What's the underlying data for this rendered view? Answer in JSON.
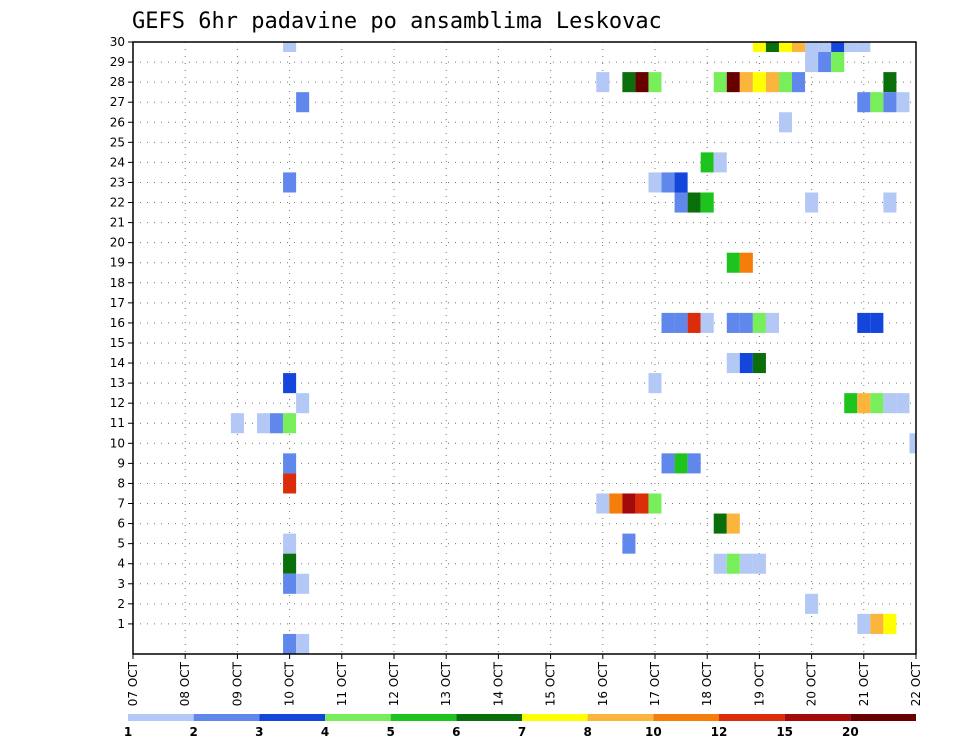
{
  "chart_data": {
    "type": "heatmap",
    "title": "GEFS 6hr padavine po ansamblima Leskovac",
    "xlabel": "",
    "ylabel": "",
    "y_ticks": [
      1,
      2,
      3,
      4,
      5,
      6,
      7,
      8,
      9,
      10,
      11,
      12,
      13,
      14,
      15,
      16,
      17,
      18,
      19,
      20,
      21,
      22,
      23,
      24,
      25,
      26,
      27,
      28,
      29,
      30
    ],
    "x_ticks": [
      "07 OCT",
      "08 OCT",
      "09 OCT",
      "10 OCT",
      "11 OCT",
      "12 OCT",
      "13 OCT",
      "14 OCT",
      "15 OCT",
      "16 OCT",
      "17 OCT",
      "18 OCT",
      "19 OCT",
      "20 OCT",
      "21 OCT",
      "22 OCT"
    ],
    "grid": true,
    "legend": {
      "position": "bottom",
      "labels": [
        "1",
        "2",
        "3",
        "4",
        "5",
        "6",
        "7",
        "8",
        "10",
        "12",
        "15",
        "20"
      ],
      "colors": [
        "#b4c8f5",
        "#5f87ec",
        "#1446dc",
        "#78ee5a",
        "#1ec31e",
        "#0a6e0a",
        "#ffff00",
        "#fbb43c",
        "#f57d0a",
        "#dc2d0a",
        "#a50a0a",
        "#690000"
      ]
    },
    "cells": [
      {
        "x": "10 OCT 00",
        "y": 30,
        "v": 1
      },
      {
        "x": "19 OCT 00",
        "y": 30,
        "v": 7
      },
      {
        "x": "19 OCT 06",
        "y": 30,
        "v": 6
      },
      {
        "x": "19 OCT 12",
        "y": 30,
        "v": 7
      },
      {
        "x": "19 OCT 18",
        "y": 30,
        "v": 8
      },
      {
        "x": "20 OCT 00",
        "y": 30,
        "v": 1
      },
      {
        "x": "20 OCT 06",
        "y": 30,
        "v": 1
      },
      {
        "x": "20 OCT 12",
        "y": 30,
        "v": 3
      },
      {
        "x": "20 OCT 18",
        "y": 30,
        "v": 1
      },
      {
        "x": "21 OCT 00",
        "y": 30,
        "v": 1
      },
      {
        "x": "20 OCT 00",
        "y": 29,
        "v": 1
      },
      {
        "x": "20 OCT 06",
        "y": 29,
        "v": 2
      },
      {
        "x": "20 OCT 12",
        "y": 29,
        "v": 4
      },
      {
        "x": "16 OCT 00",
        "y": 28,
        "v": 1
      },
      {
        "x": "16 OCT 12",
        "y": 28,
        "v": 6
      },
      {
        "x": "16 OCT 18",
        "y": 28,
        "v": 20
      },
      {
        "x": "17 OCT 00",
        "y": 28,
        "v": 4
      },
      {
        "x": "18 OCT 06",
        "y": 28,
        "v": 4
      },
      {
        "x": "18 OCT 12",
        "y": 28,
        "v": 20
      },
      {
        "x": "18 OCT 18",
        "y": 28,
        "v": 8
      },
      {
        "x": "19 OCT 00",
        "y": 28,
        "v": 7
      },
      {
        "x": "19 OCT 06",
        "y": 28,
        "v": 8
      },
      {
        "x": "19 OCT 12",
        "y": 28,
        "v": 4
      },
      {
        "x": "19 OCT 18",
        "y": 28,
        "v": 2
      },
      {
        "x": "21 OCT 12",
        "y": 28,
        "v": 6
      },
      {
        "x": "10 OCT 06",
        "y": 27,
        "v": 2
      },
      {
        "x": "21 OCT 00",
        "y": 27,
        "v": 2
      },
      {
        "x": "21 OCT 06",
        "y": 27,
        "v": 4
      },
      {
        "x": "21 OCT 12",
        "y": 27,
        "v": 2
      },
      {
        "x": "21 OCT 18",
        "y": 27,
        "v": 1
      },
      {
        "x": "19 OCT 12",
        "y": 26,
        "v": 1
      },
      {
        "x": "18 OCT 00",
        "y": 24,
        "v": 5
      },
      {
        "x": "18 OCT 06",
        "y": 24,
        "v": 1
      },
      {
        "x": "10 OCT 00",
        "y": 23,
        "v": 2
      },
      {
        "x": "17 OCT 00",
        "y": 23,
        "v": 1
      },
      {
        "x": "17 OCT 06",
        "y": 23,
        "v": 2
      },
      {
        "x": "17 OCT 12",
        "y": 23,
        "v": 3
      },
      {
        "x": "17 OCT 12",
        "y": 22,
        "v": 2
      },
      {
        "x": "17 OCT 18",
        "y": 22,
        "v": 6
      },
      {
        "x": "18 OCT 00",
        "y": 22,
        "v": 5
      },
      {
        "x": "20 OCT 00",
        "y": 22,
        "v": 1
      },
      {
        "x": "21 OCT 12",
        "y": 22,
        "v": 1
      },
      {
        "x": "18 OCT 12",
        "y": 19,
        "v": 5
      },
      {
        "x": "18 OCT 18",
        "y": 19,
        "v": 10
      },
      {
        "x": "17 OCT 06",
        "y": 16,
        "v": 2
      },
      {
        "x": "17 OCT 12",
        "y": 16,
        "v": 2
      },
      {
        "x": "17 OCT 18",
        "y": 16,
        "v": 12
      },
      {
        "x": "18 OCT 00",
        "y": 16,
        "v": 1
      },
      {
        "x": "18 OCT 12",
        "y": 16,
        "v": 2
      },
      {
        "x": "18 OCT 18",
        "y": 16,
        "v": 2
      },
      {
        "x": "19 OCT 00",
        "y": 16,
        "v": 4
      },
      {
        "x": "19 OCT 06",
        "y": 16,
        "v": 1
      },
      {
        "x": "21 OCT 00",
        "y": 16,
        "v": 3
      },
      {
        "x": "21 OCT 06",
        "y": 16,
        "v": 3
      },
      {
        "x": "18 OCT 12",
        "y": 14,
        "v": 1
      },
      {
        "x": "18 OCT 18",
        "y": 14,
        "v": 3
      },
      {
        "x": "19 OCT 00",
        "y": 14,
        "v": 6
      },
      {
        "x": "10 OCT 00",
        "y": 13,
        "v": 3
      },
      {
        "x": "17 OCT 00",
        "y": 13,
        "v": 1
      },
      {
        "x": "10 OCT 06",
        "y": 12,
        "v": 1
      },
      {
        "x": "20 OCT 18",
        "y": 12,
        "v": 5
      },
      {
        "x": "21 OCT 00",
        "y": 12,
        "v": 8
      },
      {
        "x": "21 OCT 06",
        "y": 12,
        "v": 4
      },
      {
        "x": "21 OCT 12",
        "y": 12,
        "v": 1
      },
      {
        "x": "21 OCT 18",
        "y": 12,
        "v": 1
      },
      {
        "x": "09 OCT 00",
        "y": 11,
        "v": 1
      },
      {
        "x": "09 OCT 12",
        "y": 11,
        "v": 1
      },
      {
        "x": "09 OCT 18",
        "y": 11,
        "v": 2
      },
      {
        "x": "10 OCT 00",
        "y": 11,
        "v": 4
      },
      {
        "x": "22 OCT 00",
        "y": 10,
        "v": 1
      },
      {
        "x": "10 OCT 00",
        "y": 9,
        "v": 2
      },
      {
        "x": "17 OCT 06",
        "y": 9,
        "v": 2
      },
      {
        "x": "17 OCT 12",
        "y": 9,
        "v": 5
      },
      {
        "x": "17 OCT 18",
        "y": 9,
        "v": 2
      },
      {
        "x": "10 OCT 00",
        "y": 8,
        "v": 12
      },
      {
        "x": "16 OCT 00",
        "y": 7,
        "v": 1
      },
      {
        "x": "16 OCT 06",
        "y": 7,
        "v": 10
      },
      {
        "x": "16 OCT 12",
        "y": 7,
        "v": 15
      },
      {
        "x": "16 OCT 18",
        "y": 7,
        "v": 12
      },
      {
        "x": "17 OCT 00",
        "y": 7,
        "v": 4
      },
      {
        "x": "18 OCT 06",
        "y": 6,
        "v": 6
      },
      {
        "x": "18 OCT 12",
        "y": 6,
        "v": 8
      },
      {
        "x": "10 OCT 00",
        "y": 5,
        "v": 1
      },
      {
        "x": "16 OCT 12",
        "y": 5,
        "v": 2
      },
      {
        "x": "10 OCT 00",
        "y": 4,
        "v": 6
      },
      {
        "x": "18 OCT 06",
        "y": 4,
        "v": 1
      },
      {
        "x": "18 OCT 12",
        "y": 4,
        "v": 4
      },
      {
        "x": "18 OCT 18",
        "y": 4,
        "v": 1
      },
      {
        "x": "19 OCT 00",
        "y": 4,
        "v": 1
      },
      {
        "x": "10 OCT 00",
        "y": 3,
        "v": 2
      },
      {
        "x": "10 OCT 06",
        "y": 3,
        "v": 1
      },
      {
        "x": "20 OCT 00",
        "y": 2,
        "v": 1
      },
      {
        "x": "21 OCT 00",
        "y": 1,
        "v": 1
      },
      {
        "x": "21 OCT 06",
        "y": 1,
        "v": 8
      },
      {
        "x": "21 OCT 12",
        "y": 1,
        "v": 7
      },
      {
        "x": "10 OCT 00",
        "y": 0,
        "v": 2
      },
      {
        "x": "10 OCT 06",
        "y": 0,
        "v": 1
      }
    ]
  }
}
